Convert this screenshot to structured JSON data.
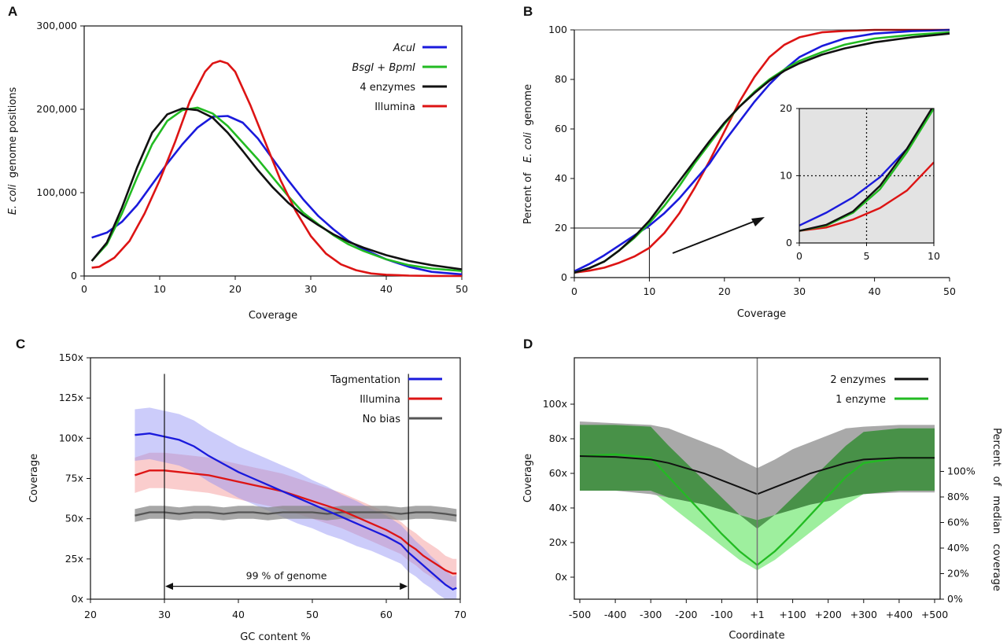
{
  "colors": {
    "blue": "#1a1adc",
    "green": "#22bb22",
    "black": "#111111",
    "red": "#dd1414",
    "darkgray": "#555555",
    "gray_band": "#9a9a9a",
    "green_dark_band": "#3f8f3f",
    "green_light_band": "#99ee99",
    "inset_bg": "#e3e3e3"
  },
  "chart_data": [
    {
      "panel": "A",
      "type": "line",
      "xlabel": "Coverage",
      "ylabel_parts": [
        "E. coli",
        "genome positions"
      ],
      "xlim": [
        0,
        50
      ],
      "ylim": [
        0,
        300000
      ],
      "xticks": [
        0,
        10,
        20,
        30,
        40,
        50
      ],
      "yticks": [
        0,
        100000,
        200000,
        300000
      ],
      "ytick_labels": [
        "0",
        "100,000",
        "200,000",
        "300,000"
      ],
      "legend_position": "top-right",
      "series": [
        {
          "name": "AcuI",
          "legend_parts": [
            {
              "t": "AcuI",
              "i": true
            }
          ],
          "color": "blue",
          "x": [
            1,
            3,
            5,
            7,
            9,
            11,
            13,
            15,
            17,
            19,
            21,
            23,
            25,
            27,
            29,
            31,
            33,
            35,
            37,
            40,
            43,
            46,
            50
          ],
          "y": [
            46000,
            52000,
            65000,
            85000,
            110000,
            135000,
            158000,
            178000,
            191000,
            192000,
            184000,
            165000,
            140000,
            115000,
            92000,
            72000,
            56000,
            42000,
            32000,
            20000,
            11000,
            5000,
            2000
          ]
        },
        {
          "name": "BsgI + BpmI",
          "legend_parts": [
            {
              "t": "BsgI",
              "i": true
            },
            {
              "t": " + ",
              "i": false
            },
            {
              "t": "BpmI",
              "i": true
            }
          ],
          "color": "green",
          "x": [
            1,
            3,
            5,
            7,
            9,
            11,
            13,
            15,
            17,
            19,
            21,
            23,
            25,
            27,
            29,
            31,
            33,
            35,
            37,
            40,
            43,
            46,
            50
          ],
          "y": [
            18000,
            38000,
            75000,
            118000,
            158000,
            186000,
            199000,
            202000,
            195000,
            180000,
            160000,
            140000,
            118000,
            96000,
            76000,
            62000,
            49000,
            38000,
            30000,
            20000,
            13000,
            9000,
            6000
          ]
        },
        {
          "name": "4 enzymes",
          "legend_parts": [
            {
              "t": "4  enzymes",
              "i": false
            }
          ],
          "color": "black",
          "x": [
            1,
            3,
            5,
            7,
            9,
            11,
            13,
            15,
            17,
            19,
            21,
            23,
            25,
            27,
            29,
            31,
            33,
            35,
            37,
            40,
            43,
            46,
            50
          ],
          "y": [
            18000,
            40000,
            82000,
            130000,
            172000,
            194000,
            201000,
            199000,
            190000,
            172000,
            150000,
            127000,
            106000,
            88000,
            73000,
            61000,
            50000,
            41000,
            34000,
            25000,
            18000,
            13000,
            8000
          ]
        },
        {
          "name": "Illumina",
          "legend_parts": [
            {
              "t": "Illumina",
              "i": false
            }
          ],
          "color": "red",
          "x": [
            1,
            2,
            4,
            6,
            8,
            10,
            12,
            14,
            16,
            17,
            18,
            19,
            20,
            22,
            24,
            26,
            28,
            30,
            32,
            34,
            36,
            38,
            40,
            43,
            46,
            50
          ],
          "y": [
            10000,
            11000,
            22000,
            42000,
            75000,
            115000,
            160000,
            210000,
            245000,
            255000,
            258000,
            255000,
            245000,
            205000,
            160000,
            115000,
            78000,
            48000,
            27000,
            14000,
            7000,
            3000,
            1500,
            500,
            100,
            0
          ]
        }
      ]
    },
    {
      "panel": "B",
      "type": "line",
      "xlabel": "Coverage",
      "ylabel_parts": [
        "Percent of",
        "E. coli",
        "genome"
      ],
      "xlim": [
        0,
        50
      ],
      "ylim": [
        0,
        100
      ],
      "xticks": [
        0,
        10,
        20,
        30,
        40,
        50
      ],
      "yticks": [
        0,
        20,
        40,
        60,
        80,
        100
      ],
      "guide_point": [
        10,
        20
      ],
      "series": [
        {
          "name": "AcuI",
          "color": "blue",
          "x": [
            0,
            2,
            4,
            6,
            8,
            10,
            12,
            14,
            16,
            18,
            20,
            22,
            24,
            26,
            28,
            30,
            33,
            36,
            40,
            45,
            50
          ],
          "y": [
            2.5,
            5.5,
            9,
            13,
            17,
            21,
            26,
            32,
            39,
            46,
            55,
            63,
            71,
            78,
            84,
            89,
            93.5,
            96.5,
            98.5,
            99.5,
            100
          ]
        },
        {
          "name": "BsgI + BpmI",
          "color": "green",
          "x": [
            0,
            2,
            4,
            6,
            8,
            10,
            12,
            14,
            16,
            18,
            20,
            22,
            24,
            26,
            28,
            30,
            33,
            36,
            40,
            45,
            50
          ],
          "y": [
            2,
            3.8,
            6.5,
            11,
            16,
            22,
            29,
            37,
            46,
            54,
            62,
            69,
            75,
            80,
            84,
            87.5,
            91,
            94,
            96.5,
            98,
            99
          ]
        },
        {
          "name": "4 enzymes",
          "color": "black",
          "x": [
            0,
            2,
            4,
            6,
            8,
            10,
            12,
            14,
            16,
            18,
            20,
            22,
            24,
            26,
            28,
            30,
            33,
            36,
            40,
            45,
            50
          ],
          "y": [
            2,
            3.8,
            6.5,
            11,
            16.5,
            23,
            31,
            39,
            47,
            55,
            62.5,
            69,
            74.5,
            79.5,
            83.5,
            86.5,
            90,
            92.5,
            95,
            97,
            98.5
          ]
        },
        {
          "name": "Illumina",
          "color": "red",
          "x": [
            0,
            2,
            4,
            6,
            8,
            10,
            12,
            14,
            16,
            18,
            20,
            22,
            24,
            26,
            28,
            30,
            33,
            36,
            40,
            45,
            50
          ],
          "y": [
            2,
            2.8,
            4,
            6,
            8.5,
            12,
            18,
            26,
            36,
            47,
            59,
            71,
            81,
            89,
            94,
            97,
            99,
            99.6,
            100,
            100,
            100
          ]
        }
      ],
      "inset": {
        "xlim": [
          0,
          10
        ],
        "ylim": [
          0,
          20
        ],
        "xticks": [
          0,
          5,
          10
        ],
        "yticks": [
          0,
          10,
          20
        ],
        "crosshair": [
          5,
          10
        ],
        "series": [
          {
            "name": "AcuI",
            "color": "blue",
            "x": [
              0,
              2,
              4,
              6,
              8,
              10
            ],
            "y": [
              2.6,
              4.5,
              6.8,
              9.8,
              14,
              20
            ]
          },
          {
            "name": "BsgI + BpmI",
            "color": "green",
            "x": [
              0,
              2,
              4,
              6,
              8,
              10
            ],
            "y": [
              1.8,
              2.6,
              4.5,
              8,
              13.5,
              20
            ]
          },
          {
            "name": "4 enzymes",
            "color": "black",
            "x": [
              0,
              2,
              4,
              6,
              8,
              10
            ],
            "y": [
              1.8,
              2.7,
              4.7,
              8.5,
              14,
              20.5
            ]
          },
          {
            "name": "Illumina",
            "color": "red",
            "x": [
              0,
              2,
              4,
              6,
              8,
              10
            ],
            "y": [
              1.8,
              2.3,
              3.5,
              5.2,
              7.8,
              12
            ]
          }
        ]
      }
    },
    {
      "panel": "C",
      "type": "line",
      "xlabel": "GC  content  %",
      "ylabel": "Coverage",
      "xlim": [
        20,
        70
      ],
      "ylim": [
        0,
        150
      ],
      "xticks": [
        20,
        30,
        40,
        50,
        60,
        70
      ],
      "yticks": [
        0,
        25,
        50,
        75,
        100,
        125,
        150
      ],
      "ytick_labels": [
        "0x",
        "25x",
        "50x",
        "75x",
        "100x",
        "125x",
        "150x"
      ],
      "vlines": [
        30,
        63
      ],
      "vline_top": 140,
      "annotation": "99 %  of  genome",
      "annotation_y": 8,
      "series": [
        {
          "name": "Tagmentation",
          "color": "blue",
          "x": [
            26,
            28,
            30,
            32,
            34,
            36,
            38,
            40,
            42,
            44,
            46,
            48,
            50,
            52,
            54,
            56,
            58,
            60,
            62,
            63,
            64,
            65,
            66,
            67,
            68,
            69,
            69.5
          ],
          "y": [
            102,
            103,
            101,
            99,
            95,
            89,
            84,
            79,
            75,
            71,
            67,
            63,
            59,
            55,
            51,
            47,
            43,
            39,
            34,
            29,
            25,
            21,
            17,
            13,
            9,
            6,
            7
          ],
          "half_width": [
            16,
            16,
            16,
            16,
            16,
            16,
            16,
            16,
            16,
            16,
            16,
            16,
            15,
            15,
            14,
            14,
            13,
            13,
            12,
            12,
            11,
            11,
            10,
            10,
            9,
            8,
            8
          ]
        },
        {
          "name": "Illumina",
          "color": "red",
          "x": [
            26,
            28,
            30,
            32,
            34,
            36,
            38,
            40,
            42,
            44,
            46,
            48,
            50,
            52,
            54,
            56,
            58,
            60,
            62,
            63,
            64,
            65,
            66,
            67,
            68,
            69,
            69.5
          ],
          "y": [
            77,
            80,
            80,
            79,
            78,
            77,
            75,
            73,
            71,
            69,
            67,
            64,
            61,
            58,
            55,
            51,
            47,
            43,
            38,
            34,
            31,
            27,
            24,
            21,
            18,
            16,
            16
          ],
          "half_width": [
            11,
            11,
            11,
            11,
            11,
            11,
            11,
            11,
            11,
            11,
            11,
            11,
            11,
            11,
            11,
            11,
            11,
            11,
            10,
            10,
            10,
            10,
            10,
            10,
            9,
            9,
            9
          ]
        },
        {
          "name": "No bias",
          "color": "darkgray",
          "x": [
            26,
            28,
            30,
            32,
            34,
            36,
            38,
            40,
            42,
            44,
            46,
            48,
            50,
            52,
            54,
            56,
            58,
            60,
            62,
            64,
            66,
            68,
            69.5
          ],
          "y": [
            52,
            54,
            54,
            53,
            54,
            54,
            53,
            54,
            54,
            53,
            54,
            54,
            54,
            53,
            54,
            54,
            54,
            54,
            53,
            54,
            54,
            53,
            52
          ],
          "half_width": [
            4,
            4,
            4,
            4,
            4,
            4,
            4,
            4,
            4,
            4,
            4,
            4,
            4,
            4,
            4,
            4,
            4,
            4,
            4,
            4,
            4,
            4,
            4
          ]
        }
      ]
    },
    {
      "panel": "D",
      "type": "line",
      "xlabel": "Coordinate",
      "ylabel": "Coverage",
      "ylabel_right_parts": [
        "Percent",
        "of",
        "median",
        "coverage"
      ],
      "xlim": [
        -500,
        500
      ],
      "ylim": [
        0,
        120
      ],
      "xticks": [
        -500,
        -400,
        -300,
        -200,
        -100,
        0,
        100,
        200,
        300,
        400,
        500
      ],
      "xtick_labels": [
        "-500",
        "-400",
        "-300",
        "-200",
        "-100",
        "+1",
        "+100",
        "+200",
        "+300",
        "+400",
        "+500"
      ],
      "yticks": [
        0,
        20,
        40,
        60,
        80,
        100
      ],
      "ytick_labels": [
        "0x",
        "20x",
        "40x",
        "60x",
        "80x",
        "100x"
      ],
      "right_ticks": [
        0,
        20,
        40,
        60,
        80,
        100
      ],
      "right_tick_labels": [
        "0%",
        "20%",
        "40%",
        "60%",
        "80%",
        "100%"
      ],
      "right_ylim": [
        0,
        120
      ],
      "vline": 0,
      "series": [
        {
          "name": "2  enzymes",
          "color": "black",
          "x": [
            -500,
            -400,
            -300,
            -250,
            -200,
            -150,
            -100,
            -50,
            0,
            50,
            100,
            150,
            200,
            250,
            300,
            400,
            500
          ],
          "y": [
            70,
            69.5,
            68,
            66,
            63,
            60,
            56,
            52,
            48,
            52,
            56,
            60,
            63,
            66,
            68,
            69,
            69
          ],
          "lower": [
            50,
            50,
            48,
            46,
            44,
            42,
            39,
            36,
            33,
            36,
            39,
            42,
            44,
            46,
            48,
            49,
            49
          ],
          "upper": [
            90,
            89,
            88,
            86,
            82,
            78,
            74,
            68,
            63,
            68,
            74,
            78,
            82,
            86,
            87,
            88,
            88
          ]
        },
        {
          "name": "1  enzyme",
          "color": "green",
          "x": [
            -500,
            -400,
            -300,
            -250,
            -200,
            -150,
            -100,
            -50,
            0,
            50,
            100,
            150,
            200,
            250,
            300,
            400,
            500
          ],
          "y": [
            70,
            71,
            69,
            58,
            47,
            36,
            25,
            15,
            7,
            15,
            25,
            36,
            47,
            58,
            66,
            69,
            69
          ],
          "lower": [
            50,
            50,
            50,
            42,
            34,
            26,
            18,
            10,
            4,
            10,
            18,
            26,
            34,
            42,
            48,
            50,
            50
          ],
          "upper": [
            88,
            88,
            87,
            76,
            66,
            56,
            46,
            36,
            28,
            36,
            46,
            56,
            66,
            76,
            84,
            86,
            86
          ]
        }
      ]
    }
  ]
}
